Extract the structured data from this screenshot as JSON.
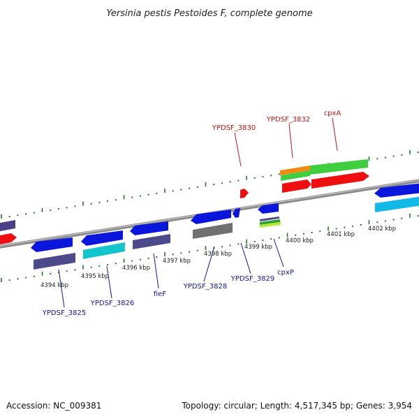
{
  "title": "Yersinia pestis Pestoides F, complete genome",
  "footer": {
    "accession": "Accession: NC_009381",
    "topology": "Topology: circular; Length: 4,517,345 bp; Genes: 3,954"
  },
  "colors": {
    "backbone": "#8a8a8a",
    "ticks": "#227722",
    "forward_label": "#cc1111",
    "reverse_label": "#1111aa"
  },
  "kbp_labels": [
    "4394 kbp",
    "4395 kbp",
    "4396 kbp",
    "4397 kbp",
    "4398 kbp",
    "4399 kbp",
    "4400 kbp",
    "4401 kbp",
    "4402 kbp"
  ],
  "forward_gene_labels": [
    "YPDSF_3830",
    "YPDSF_3832",
    "cpxA"
  ],
  "reverse_gene_labels": [
    "YPDSF_3825",
    "YPDSF_3826",
    "fieF",
    "YPDSF_3828",
    "YPDSF_3829",
    "cpxP"
  ]
}
